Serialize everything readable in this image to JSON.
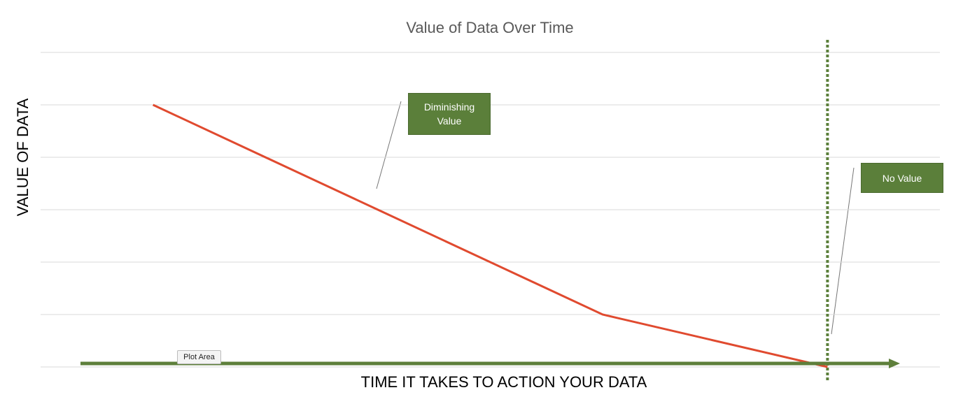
{
  "chart_data": {
    "type": "line",
    "title": "Value of Data Over Time",
    "x_label": "TIME IT TAKES TO ACTION YOUR DATA",
    "y_label": "VALUE OF DATA",
    "categories": [
      null,
      null,
      null,
      null
    ],
    "values": [
      5,
      3,
      1,
      0
    ],
    "color": "#e04a2f",
    "ylim": [
      0,
      6
    ],
    "yticks": [
      0,
      1,
      2,
      3,
      4,
      5,
      6
    ],
    "grid": true,
    "annotations": [
      "Diminishing Value",
      "No Value"
    ],
    "tooltip": "Plot Area"
  }
}
